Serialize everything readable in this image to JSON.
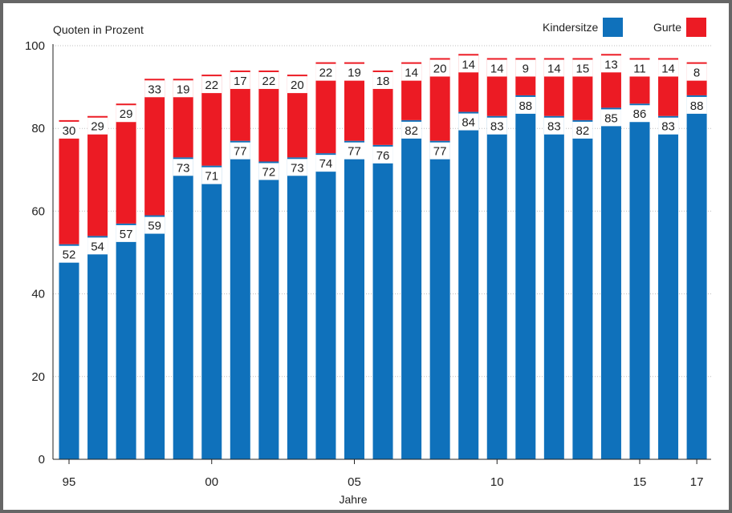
{
  "colors": {
    "kindersitze": "#0f71bb",
    "gurte": "#ec1b24",
    "axis": "#222222",
    "grid": "#bdbdbd"
  },
  "chart_data": {
    "type": "bar",
    "stacked": true,
    "title": "",
    "ylabel": "Quoten in Prozent",
    "xlabel": "Jahre",
    "ylim": [
      0,
      100
    ],
    "yticks": [
      0,
      20,
      40,
      60,
      80,
      100
    ],
    "grid": true,
    "legend_position": "top-right",
    "categories": [
      "1995",
      "1996",
      "1997",
      "1998",
      "1999",
      "2000",
      "2001",
      "2002",
      "2003",
      "2004",
      "2005",
      "2006",
      "2007",
      "2008",
      "2009",
      "2010",
      "2011",
      "2012",
      "2013",
      "2014",
      "2015",
      "2016",
      "2017"
    ],
    "xtick_labels": [
      {
        "category": "1995",
        "label": "95"
      },
      {
        "category": "2000",
        "label": "00"
      },
      {
        "category": "2005",
        "label": "05"
      },
      {
        "category": "2010",
        "label": "10"
      },
      {
        "category": "2015",
        "label": "15"
      },
      {
        "category": "2017",
        "label": "17"
      }
    ],
    "series": [
      {
        "name": "Kindersitze",
        "values": [
          52,
          54,
          57,
          59,
          73,
          71,
          77,
          72,
          73,
          74,
          77,
          76,
          82,
          77,
          84,
          83,
          88,
          83,
          82,
          85,
          86,
          83,
          88
        ]
      },
      {
        "name": "Gurte",
        "values": [
          30,
          29,
          29,
          33,
          19,
          22,
          17,
          22,
          20,
          22,
          19,
          18,
          14,
          20,
          14,
          14,
          9,
          14,
          15,
          13,
          11,
          14,
          8
        ]
      }
    ]
  }
}
